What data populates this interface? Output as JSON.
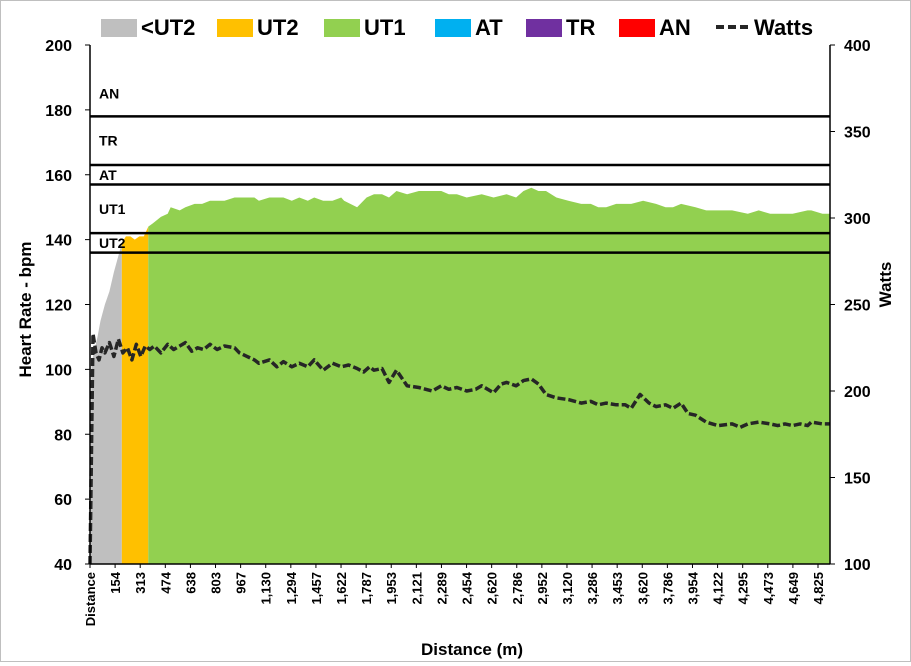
{
  "chart_data": {
    "type": "area",
    "title": "",
    "xlabel": "Distance (m)",
    "ylabel_left": "Heart Rate - bpm",
    "ylabel_right": "Watts",
    "ylim_left": [
      40,
      200
    ],
    "ylim_right": [
      100,
      400
    ],
    "yticks_left": [
      40,
      60,
      80,
      100,
      120,
      140,
      160,
      180,
      200
    ],
    "yticks_right": [
      100,
      150,
      200,
      250,
      300,
      350,
      400
    ],
    "x_tick_labels": [
      "Distance",
      "154",
      "313",
      "474",
      "638",
      "803",
      "967",
      "1,130",
      "1,294",
      "1,457",
      "1,622",
      "1,787",
      "1,953",
      "2,121",
      "2,289",
      "2,454",
      "2,620",
      "2,786",
      "2,952",
      "3,120",
      "3,286",
      "3,453",
      "3,620",
      "3,786",
      "3,954",
      "4,122",
      "4,295",
      "4,473",
      "4,649",
      "4,825"
    ],
    "legend": {
      "position": "top",
      "entries": [
        {
          "name": "<UT2",
          "color": "#bfbfbf"
        },
        {
          "name": "UT2",
          "color": "#ffc000"
        },
        {
          "name": "UT1",
          "color": "#92d050"
        },
        {
          "name": "AT",
          "color": "#00b0f0"
        },
        {
          "name": "TR",
          "color": "#7030a0"
        },
        {
          "name": "AN",
          "color": "#ff0000"
        },
        {
          "name": "Watts",
          "color": "#262626",
          "style": "dashed"
        }
      ]
    },
    "zone_lines_bpm": [
      136,
      142,
      157,
      163,
      178
    ],
    "zone_labels": [
      {
        "name": "UT2",
        "bpm": 139
      },
      {
        "name": "UT1",
        "bpm": 149.5
      },
      {
        "name": "AT",
        "bpm": 160
      },
      {
        "name": "TR",
        "bpm": 170.5
      },
      {
        "name": "AN",
        "bpm": 185
      }
    ],
    "zone_spans_m": [
      {
        "zone": "<UT2",
        "from": 0,
        "to": 213
      },
      {
        "zone": "UT2",
        "from": 213,
        "to": 390
      },
      {
        "zone": "UT1",
        "from": 390,
        "to": 4950
      }
    ],
    "heart_rate": {
      "x": [
        0,
        10,
        30,
        50,
        70,
        100,
        130,
        160,
        190,
        213,
        240,
        270,
        300,
        330,
        360,
        390,
        420,
        474,
        520,
        540,
        600,
        638,
        700,
        750,
        803,
        850,
        900,
        967,
        1000,
        1050,
        1100,
        1130,
        1200,
        1294,
        1350,
        1400,
        1457,
        1500,
        1560,
        1622,
        1680,
        1700,
        1787,
        1850,
        1900,
        1953,
        2000,
        2050,
        2121,
        2200,
        2289,
        2350,
        2400,
        2454,
        2520,
        2620,
        2700,
        2786,
        2850,
        2900,
        2952,
        3000,
        3050,
        3120,
        3200,
        3286,
        3350,
        3400,
        3453,
        3520,
        3620,
        3700,
        3786,
        3850,
        3900,
        3954,
        4050,
        4122,
        4200,
        4295,
        4400,
        4473,
        4550,
        4649,
        4700,
        4800,
        4825,
        4900,
        4950
      ],
      "y": [
        40,
        102,
        106,
        110,
        115,
        120,
        124,
        130,
        135,
        139,
        141,
        141,
        140,
        141,
        141,
        144,
        145,
        147,
        148,
        150,
        149,
        150,
        151,
        151,
        152,
        152,
        152,
        153,
        153,
        153,
        153,
        152,
        153,
        153,
        152,
        153,
        152,
        153,
        152,
        152,
        153,
        152,
        150,
        153,
        154,
        154,
        153,
        155,
        154,
        155,
        155,
        155,
        154,
        154,
        153,
        154,
        153,
        154,
        153,
        155,
        156,
        155,
        155,
        153,
        152,
        151,
        151,
        150,
        150,
        151,
        151,
        152,
        151,
        150,
        150,
        151,
        150,
        149,
        149,
        149,
        148,
        149,
        148,
        148,
        148,
        149,
        149,
        148,
        148
      ]
    },
    "watts": {
      "x": [
        0,
        20,
        40,
        60,
        80,
        100,
        130,
        160,
        190,
        220,
        250,
        280,
        310,
        340,
        370,
        400,
        430,
        474,
        520,
        560,
        600,
        638,
        680,
        720,
        760,
        803,
        850,
        900,
        967,
        1000,
        1050,
        1100,
        1130,
        1200,
        1250,
        1294,
        1350,
        1400,
        1457,
        1500,
        1560,
        1622,
        1680,
        1730,
        1787,
        1830,
        1870,
        1900,
        1953,
        2000,
        2050,
        2121,
        2200,
        2289,
        2350,
        2400,
        2454,
        2520,
        2580,
        2620,
        2700,
        2750,
        2786,
        2850,
        2900,
        2952,
        3000,
        3050,
        3120,
        3200,
        3286,
        3350,
        3400,
        3453,
        3520,
        3580,
        3620,
        3680,
        3740,
        3786,
        3850,
        3900,
        3954,
        4000,
        4050,
        4122,
        4200,
        4295,
        4350,
        4400,
        4473,
        4550,
        4600,
        4649,
        4700,
        4750,
        4800,
        4825,
        4900,
        4950
      ],
      "y": [
        100,
        233,
        222,
        218,
        225,
        222,
        228,
        220,
        230,
        222,
        225,
        218,
        227,
        220,
        226,
        224,
        226,
        222,
        227,
        224,
        226,
        228,
        223,
        225,
        224,
        227,
        224,
        226,
        225,
        222,
        220,
        218,
        216,
        218,
        214,
        217,
        214,
        216,
        214,
        218,
        212,
        216,
        214,
        215,
        213,
        211,
        214,
        212,
        213,
        205,
        212,
        203,
        202,
        200,
        203,
        201,
        202,
        200,
        201,
        203,
        199,
        204,
        205,
        203,
        206,
        207,
        204,
        198,
        196,
        195,
        193,
        194,
        192,
        193,
        192,
        192,
        190,
        198,
        193,
        191,
        192,
        190,
        193,
        187,
        186,
        182,
        180,
        181,
        179,
        181,
        182,
        181,
        180,
        181,
        180,
        181,
        180,
        182,
        181,
        181
      ]
    }
  }
}
